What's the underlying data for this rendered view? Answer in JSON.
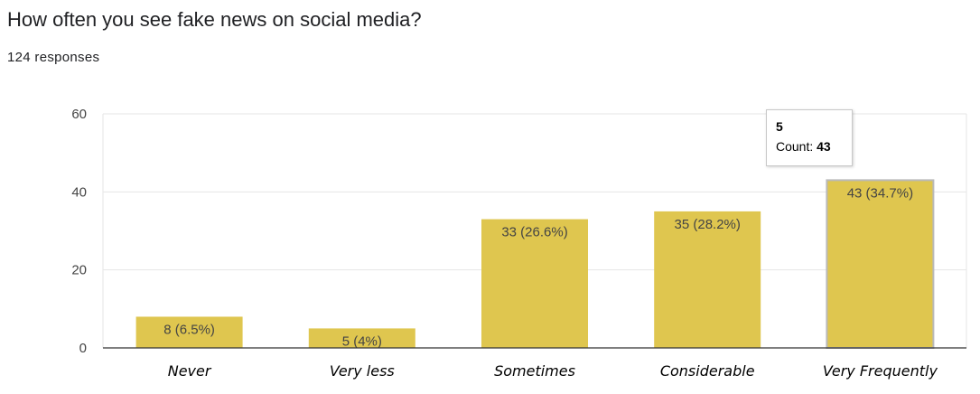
{
  "header": {
    "title": "How often you see fake news on social media?",
    "responses": "124 responses"
  },
  "tooltip": {
    "title": "5",
    "label": "Count:",
    "value": "43"
  },
  "colors": {
    "bar": "#dfc64f",
    "bar_highlight_border": "#b9b9b9",
    "grid": "#e6e6e6",
    "axis": "#333333"
  },
  "chart_data": {
    "type": "bar",
    "title": "How often you see fake news on social media?",
    "xlabel": "",
    "ylabel": "",
    "ylim": [
      0,
      60
    ],
    "yticks": [
      0,
      20,
      40,
      60
    ],
    "grid": true,
    "categories": [
      "Never",
      "Very less",
      "Sometimes",
      "Considerable",
      "Very Frequently"
    ],
    "values": [
      8,
      5,
      33,
      35,
      43
    ],
    "data_labels": [
      "8 (6.5%)",
      "5 (4%)",
      "33 (26.6%)",
      "35 (28.2%)",
      "43 (34.7%)"
    ],
    "highlighted_index": 4
  }
}
